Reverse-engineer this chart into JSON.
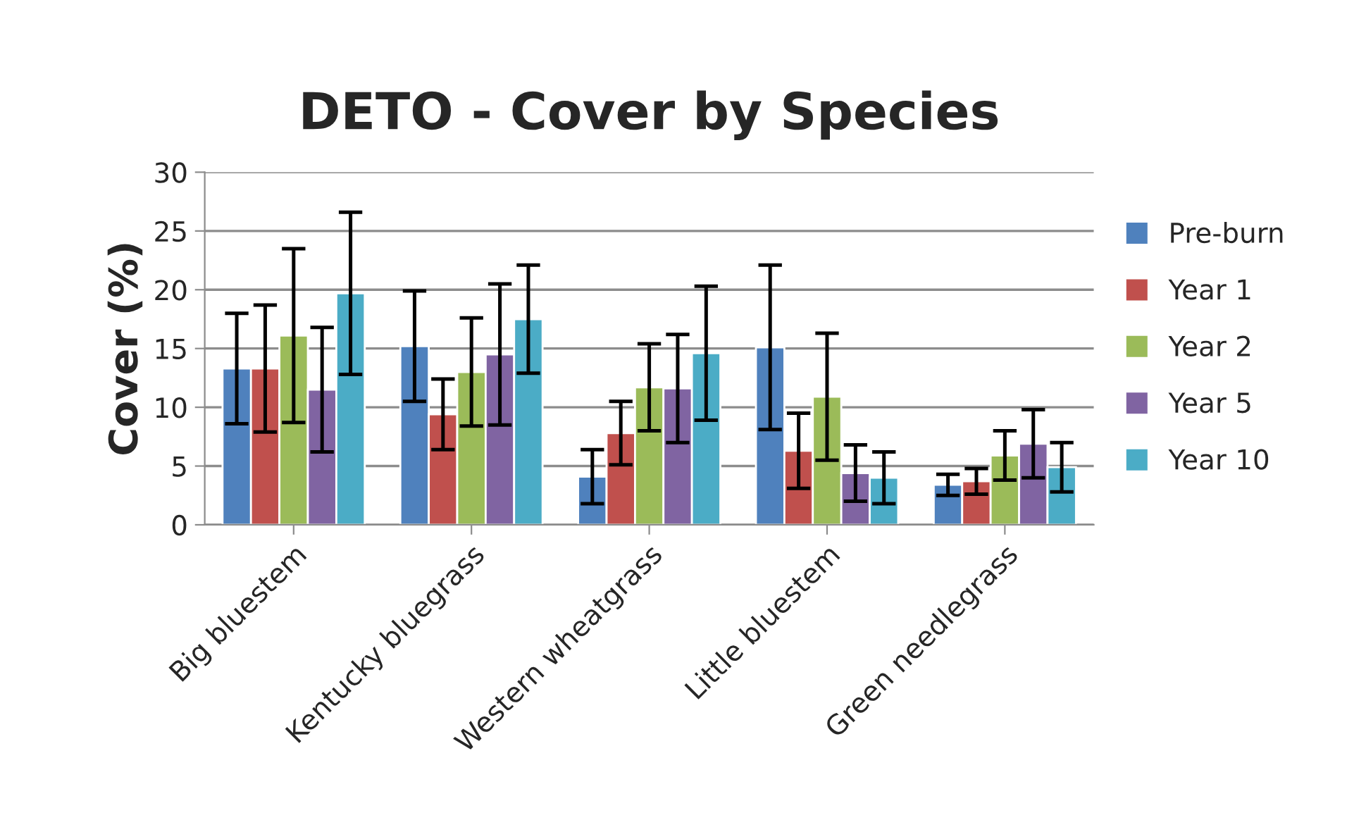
{
  "chart_data": {
    "type": "bar",
    "title": "DETO - Cover by Species",
    "ylabel": "Cover (%)",
    "categories": [
      "Big bluestem",
      "Kentucky bluegrass",
      "Western wheatgrass",
      "Little bluestem",
      "Green needlegrass"
    ],
    "series": [
      {
        "name": "Pre-burn",
        "color": "#4f81bd",
        "values": [
          13.3,
          15.2,
          4.1,
          15.1,
          3.4
        ],
        "errors": [
          4.7,
          4.7,
          2.3,
          7.0,
          0.9
        ]
      },
      {
        "name": "Year 1",
        "color": "#c0504d",
        "values": [
          13.3,
          9.4,
          7.8,
          6.3,
          3.7
        ],
        "errors": [
          5.4,
          3.0,
          2.7,
          3.2,
          1.1
        ]
      },
      {
        "name": "Year 2",
        "color": "#9bbb59",
        "values": [
          16.1,
          13.0,
          11.7,
          10.9,
          5.9
        ],
        "errors": [
          7.4,
          4.6,
          3.7,
          5.4,
          2.1
        ]
      },
      {
        "name": "Year 5",
        "color": "#8064a2",
        "values": [
          11.5,
          14.5,
          11.6,
          4.4,
          6.9
        ],
        "errors": [
          5.3,
          6.0,
          4.6,
          2.4,
          2.9
        ]
      },
      {
        "name": "Year 10",
        "color": "#4bacc6",
        "values": [
          19.7,
          17.5,
          14.6,
          4.0,
          4.9
        ],
        "errors": [
          6.9,
          4.6,
          5.7,
          2.2,
          2.1
        ]
      }
    ],
    "ylim": [
      0,
      30
    ],
    "yticks": [
      0,
      5,
      10,
      15,
      20,
      25,
      30
    ],
    "grid": "y",
    "legend": "right"
  }
}
